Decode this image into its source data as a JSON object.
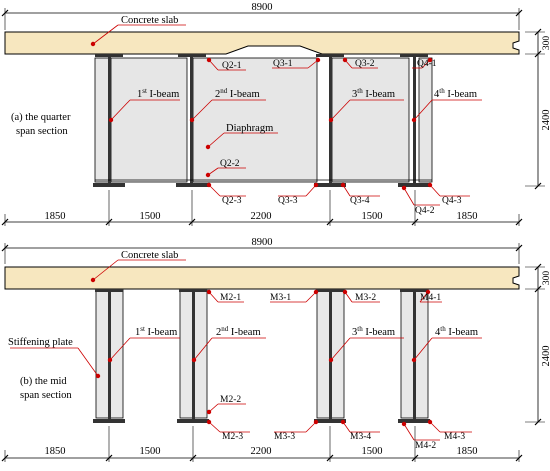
{
  "colors": {
    "slab_fill": "#f7e7bf",
    "diaphragm_fill": "#e6e6e6",
    "web_fill": "#e8e8e8",
    "callout_red": "#cc0000",
    "line": "#000000"
  },
  "top_panel": {
    "overall_width": "8900",
    "slab_label": "Concrete slab",
    "section_label_line1": "(a) the quarter",
    "section_label_line2": "span section",
    "diaphragm_label": "Diaphragm",
    "beam_labels": [
      {
        "num": "1",
        "sup": "st",
        "text": " I-beam"
      },
      {
        "num": "2",
        "sup": "nd",
        "text": " I-beam"
      },
      {
        "num": "3",
        "sup": "th",
        "text": " I-beam"
      },
      {
        "num": "4",
        "sup": "th",
        "text": " I-beam"
      }
    ],
    "gauges": [
      "Q2-1",
      "Q3-1",
      "Q3-2",
      "Q4-1",
      "Q2-2",
      "Q2-3",
      "Q3-3",
      "Q3-4",
      "Q4-2",
      "Q4-3"
    ],
    "height_slab": "300",
    "height_beam": "2400",
    "spacing": [
      "1850",
      "1500",
      "2200",
      "1500",
      "1850"
    ]
  },
  "bottom_panel": {
    "overall_width": "8900",
    "slab_label": "Concrete slab",
    "section_label_line1": "(b) the mid",
    "section_label_line2": "span section",
    "stiffener_label": "Stiffening plate",
    "beam_labels": [
      {
        "num": "1",
        "sup": "st",
        "text": " I-beam"
      },
      {
        "num": "2",
        "sup": "nd",
        "text": " I-beam"
      },
      {
        "num": "3",
        "sup": "th",
        "text": " I-beam"
      },
      {
        "num": "4",
        "sup": "th",
        "text": " I-beam"
      }
    ],
    "gauges": [
      "M2-1",
      "M3-1",
      "M3-2",
      "M4-1",
      "M2-2",
      "M2-3",
      "M3-3",
      "M3-4",
      "M4-2",
      "M4-3"
    ],
    "height_slab": "300",
    "height_beam": "2400",
    "spacing": [
      "1850",
      "1500",
      "2200",
      "1500",
      "1850"
    ]
  }
}
